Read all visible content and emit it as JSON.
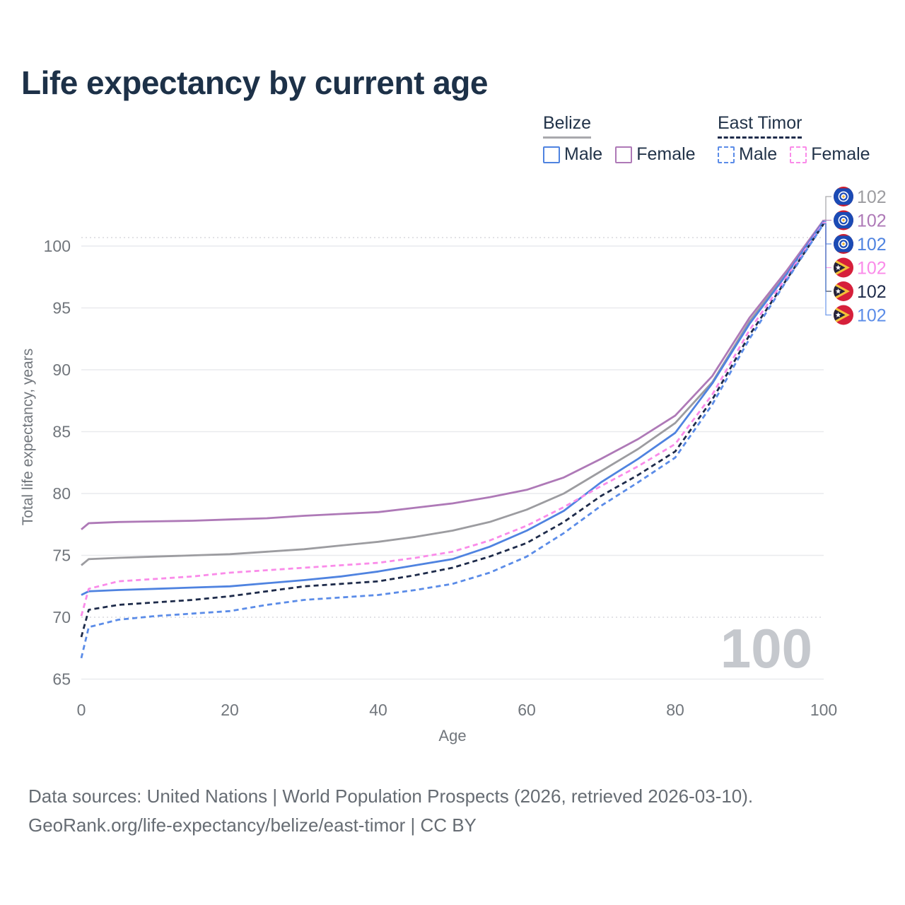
{
  "title": "Life expectancy by current age",
  "legend": {
    "groups": [
      {
        "label": "Belize",
        "line_style": "solid",
        "underline_color": "#a9a9ad",
        "items": [
          {
            "label": "Male",
            "color": "#4f83e0",
            "dash": false
          },
          {
            "label": "Female",
            "color": "#ae79b7",
            "dash": false
          }
        ]
      },
      {
        "label": "East Timor",
        "line_style": "dashed",
        "underline_color": "#1e2b4a",
        "items": [
          {
            "label": "Male",
            "color": "#5b8ce8",
            "dash": true
          },
          {
            "label": "Female",
            "color": "#fa8be9",
            "dash": true
          }
        ]
      }
    ]
  },
  "watermark": "100",
  "footer": {
    "line1": "Data sources: United Nations | World Population Prospects (2026, retrieved 2026-03-10).",
    "line2": "GeoRank.org/life-expectancy/belize/east-timor | CC BY"
  },
  "colors": {
    "title": "#1d3148",
    "axis_text": "#71767c",
    "gridline": "#e9eaee",
    "gridline_dotted": "#d8d9de",
    "watermark": "#c5c8cd"
  },
  "chart_data": {
    "type": "line",
    "title": "Life expectancy by current age",
    "xlabel": "Age",
    "ylabel": "Total life expectancy, years",
    "x_ticks": [
      0,
      20,
      40,
      60,
      80,
      100
    ],
    "y_ticks": [
      65,
      70,
      75,
      80,
      85,
      90,
      95,
      100
    ],
    "xlim": [
      0,
      100
    ],
    "ylim": [
      64.3,
      100.7
    ],
    "legend_position": "top-right",
    "grid": "horizontal-only",
    "x": [
      0,
      1,
      5,
      10,
      15,
      20,
      25,
      30,
      35,
      40,
      45,
      50,
      55,
      60,
      65,
      70,
      75,
      80,
      85,
      90,
      95,
      100
    ],
    "series": [
      {
        "name": "Belize Both sexes",
        "country": "Belize",
        "sex": "Both",
        "color": "#9c9ca0",
        "dash": false,
        "flag": "belize-flag-icon",
        "end_label": "102",
        "values": [
          74.2,
          74.7,
          74.8,
          74.9,
          75.0,
          75.1,
          75.3,
          75.5,
          75.8,
          76.1,
          76.5,
          77.0,
          77.7,
          78.7,
          80.0,
          81.8,
          83.6,
          85.7,
          89.0,
          93.9,
          97.8,
          102.0
        ]
      },
      {
        "name": "Belize Female",
        "country": "Belize",
        "sex": "Female",
        "color": "#ae79b7",
        "dash": false,
        "flag": "belize-flag-icon",
        "end_label": "102",
        "values": [
          77.1,
          77.6,
          77.7,
          77.75,
          77.8,
          77.9,
          78.0,
          78.2,
          78.35,
          78.5,
          78.85,
          79.2,
          79.7,
          80.3,
          81.3,
          82.8,
          84.4,
          86.3,
          89.5,
          94.2,
          98.0,
          102.1
        ]
      },
      {
        "name": "Belize Male",
        "country": "Belize",
        "sex": "Male",
        "color": "#4f83e0",
        "dash": false,
        "flag": "belize-flag-icon",
        "end_label": "102",
        "values": [
          71.8,
          72.1,
          72.2,
          72.3,
          72.4,
          72.5,
          72.75,
          73.0,
          73.3,
          73.7,
          74.2,
          74.7,
          75.7,
          77.0,
          78.6,
          80.9,
          82.8,
          84.9,
          88.9,
          93.7,
          97.7,
          102.0
        ]
      },
      {
        "name": "East Timor Female",
        "country": "East Timor",
        "sex": "Female",
        "color": "#fa8be9",
        "dash": true,
        "flag": "east-timor-flag-icon",
        "end_label": "102",
        "values": [
          70.1,
          72.3,
          72.9,
          73.1,
          73.3,
          73.6,
          73.8,
          74.0,
          74.2,
          74.4,
          74.8,
          75.3,
          76.2,
          77.4,
          78.9,
          80.6,
          82.2,
          84.0,
          88.0,
          93.2,
          97.5,
          101.9
        ]
      },
      {
        "name": "East Timor Both sexes",
        "country": "East Timor",
        "sex": "Both",
        "color": "#1e2b4a",
        "dash": true,
        "flag": "east-timor-flag-icon",
        "end_label": "102",
        "values": [
          68.4,
          70.6,
          71.0,
          71.2,
          71.4,
          71.7,
          72.1,
          72.5,
          72.7,
          72.9,
          73.4,
          74.0,
          74.9,
          76.0,
          77.7,
          79.8,
          81.5,
          83.4,
          87.6,
          92.8,
          97.3,
          101.8
        ]
      },
      {
        "name": "East Timor Male",
        "country": "East Timor",
        "sex": "Male",
        "color": "#5b8ce8",
        "dash": true,
        "flag": "east-timor-flag-icon",
        "end_label": "102",
        "values": [
          66.7,
          69.2,
          69.8,
          70.1,
          70.3,
          70.5,
          71.0,
          71.4,
          71.6,
          71.8,
          72.2,
          72.7,
          73.6,
          74.9,
          76.8,
          79.0,
          80.9,
          82.9,
          87.2,
          92.5,
          97.2,
          101.8
        ]
      }
    ]
  }
}
